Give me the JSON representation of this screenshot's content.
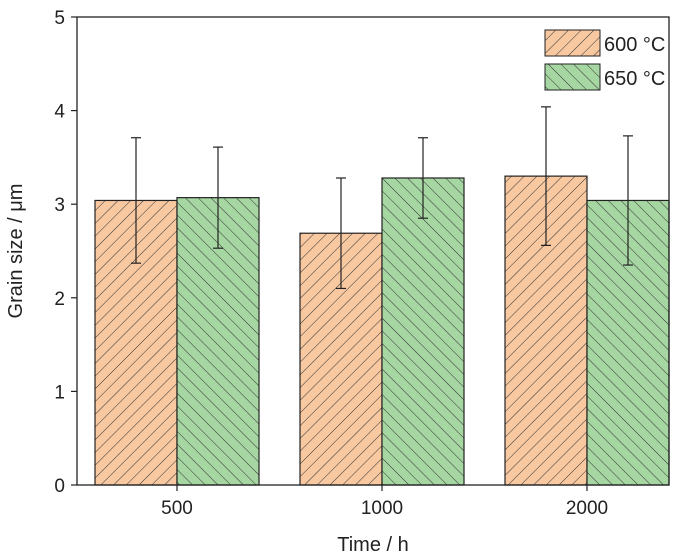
{
  "chart_data": {
    "type": "bar",
    "categories": [
      "500",
      "1000",
      "2000"
    ],
    "series": [
      {
        "name": "600 °C",
        "values": [
          3.04,
          2.69,
          3.3
        ],
        "errors": [
          0.67,
          0.59,
          0.74
        ],
        "color": "#f8c8a1",
        "pattern": "hatch-forward"
      },
      {
        "name": "650 °C",
        "values": [
          3.07,
          3.28,
          3.04
        ],
        "errors": [
          0.54,
          0.43,
          0.69
        ],
        "color": "#a6d7a2",
        "pattern": "hatch-backward"
      }
    ],
    "xlabel": "Time / h",
    "ylabel": "Grain size / μm",
    "ylim": [
      0,
      5
    ],
    "yticks": [
      "0",
      "1",
      "2",
      "3",
      "4",
      "5"
    ],
    "grid": false,
    "legend": "top-right"
  }
}
